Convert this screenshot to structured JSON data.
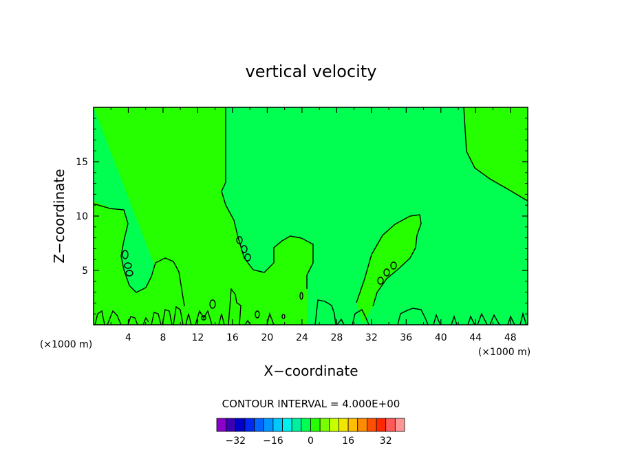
{
  "chart_data": {
    "type": "contour",
    "title": "vertical velocity",
    "xlabel": "X−coordinate",
    "ylabel": "Z−coordinate",
    "x_unit_left": "(×1000 m)",
    "x_unit_right": "(×1000 m)",
    "xlim": [
      0,
      50
    ],
    "ylim": [
      0,
      20
    ],
    "x_ticks": [
      4,
      8,
      12,
      16,
      20,
      24,
      28,
      32,
      36,
      40,
      44,
      48
    ],
    "x_tick_labels": [
      "4",
      "8",
      "12",
      "16",
      "20",
      "24",
      "28",
      "32",
      "36",
      "40",
      "44",
      "48"
    ],
    "y_ticks": [
      5,
      10,
      15
    ],
    "y_tick_labels": [
      "5",
      "10",
      "15"
    ],
    "contour_interval_label": "CONTOUR INTERVAL = 4.000E+00",
    "contour_interval": 4,
    "background_level_color": "#00ff50",
    "region_color": "#26ff00",
    "colorbar": {
      "colors": [
        "#8a00c8",
        "#3c00b4",
        "#0000c8",
        "#0028f0",
        "#0064ff",
        "#0096ff",
        "#00c8ff",
        "#00f0f0",
        "#00f0a0",
        "#00ff50",
        "#26ff00",
        "#7aff00",
        "#c8ff00",
        "#f0e600",
        "#ffbe00",
        "#ff8c00",
        "#ff5000",
        "#ff2800",
        "#ff5a5a",
        "#ff9696"
      ],
      "tick_values": [
        -32,
        -16,
        0,
        16,
        32
      ],
      "tick_labels": [
        "−32",
        "−16",
        "0",
        "16",
        "32"
      ]
    }
  }
}
